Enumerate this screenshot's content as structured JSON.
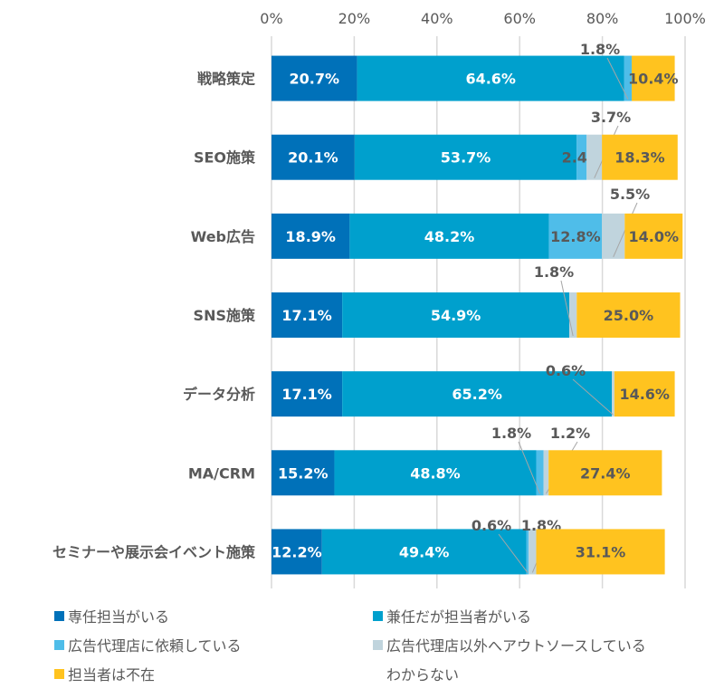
{
  "chart_data": {
    "type": "bar",
    "orientation": "horizontal",
    "stacked": true,
    "title": "",
    "xlabel": "",
    "ylabel": "",
    "xlim": [
      0,
      100
    ],
    "x_ticks": [
      "0%",
      "20%",
      "40%",
      "60%",
      "80%",
      "100%"
    ],
    "grid": true,
    "legend_position": "bottom",
    "categories": [
      "戦略策定",
      "SEO施策",
      "Web広告",
      "SNS施策",
      "データ分析",
      "MA/CRM",
      "セミナーや展示会イベント施策"
    ],
    "series": [
      {
        "name": "専任担当がいる",
        "color": "#0071b9",
        "values": [
          20.7,
          20.1,
          18.9,
          17.1,
          17.1,
          15.2,
          12.2
        ]
      },
      {
        "name": "兼任だが担当者がいる",
        "color": "#00a0cd",
        "values": [
          64.6,
          53.7,
          48.2,
          54.9,
          65.2,
          48.8,
          49.4
        ]
      },
      {
        "name": "広告代理店に依頼している",
        "color": "#4fbde9",
        "values": [
          1.8,
          2.4,
          12.8,
          0,
          0,
          1.8,
          0.6
        ]
      },
      {
        "name": "広告代理店以外へアウトソースしている",
        "color": "#c0d4dd",
        "values": [
          0,
          3.7,
          5.5,
          1.8,
          0.6,
          1.2,
          1.8
        ]
      },
      {
        "name": "担当者は不在",
        "color": "#ffc31f",
        "values": [
          10.4,
          18.3,
          14.0,
          25.0,
          14.6,
          27.4,
          31.1
        ]
      },
      {
        "name": "わからない",
        "color": "#ffffff",
        "values": [
          2.5,
          1.8,
          0.6,
          1.2,
          2.5,
          5.6,
          4.9
        ]
      }
    ],
    "value_suffix": "%"
  }
}
